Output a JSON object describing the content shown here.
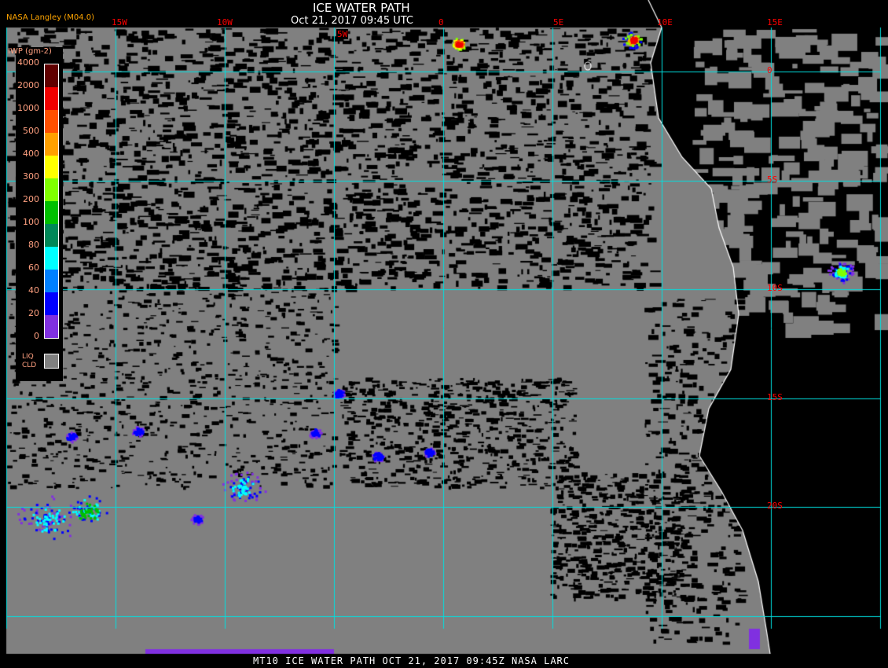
{
  "header": {
    "title": "ICE WATER PATH",
    "subtitle": "Oct 21, 2017 09:45 UTC",
    "credit": "NASA Langley (M04.0)"
  },
  "longitude_labels": [
    "15W",
    "10W",
    "5W",
    "0",
    "5E",
    "10E",
    "15E"
  ],
  "latitude_labels": [
    "0",
    "5S",
    "10S",
    "15S",
    "20S"
  ],
  "legend": {
    "title": "IWP (gm-2)",
    "levels": [
      "4000",
      "2000",
      "1000",
      "500",
      "400",
      "300",
      "200",
      "100",
      "80",
      "60",
      "40",
      "20",
      "0"
    ],
    "colors": [
      "#600000",
      "#f00000",
      "#ff5000",
      "#ffa000",
      "#ffff00",
      "#80ff00",
      "#00c000",
      "#008858",
      "#00ffff",
      "#0080ff",
      "#0000ff",
      "#8030e0"
    ],
    "liquid_cloud_label_1": "LIQ",
    "liquid_cloud_label_2": "CLD",
    "liquid_cloud_color": "#808080"
  },
  "colors": {
    "grid": "#00e0e0",
    "cloud": "#808080",
    "clear": "#000000",
    "coastline": "#ffffff"
  },
  "footer": "MT10  ICE WATER PATH   OCT 21, 2017 09:45Z   NASA LARC"
}
